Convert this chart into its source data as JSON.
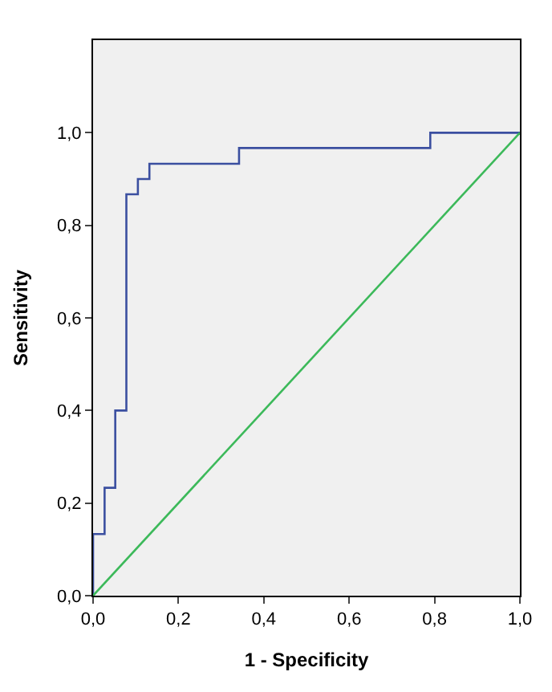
{
  "chart_data": {
    "type": "step",
    "xlabel": "1 - Specificity",
    "ylabel": "Sensitivity",
    "series": [
      {
        "color": "#3b4fa0",
        "x": [
          0,
          0,
          0.027,
          0.052,
          0.078,
          0.105,
          0.132,
          0.342,
          0.79,
          1
        ],
        "values": [
          0,
          0.133,
          0.233,
          0.4,
          0.867,
          0.9,
          0.933,
          0.967,
          1,
          1
        ]
      },
      {
        "type": "line",
        "color": "#3cb95a",
        "x": [
          0,
          1
        ],
        "values": [
          0,
          1
        ]
      }
    ],
    "xlim": [
      0,
      1
    ],
    "ylim": [
      0,
      1.2
    ],
    "xticks": [
      {
        "value": 0,
        "label": "0,0"
      },
      {
        "value": 0.2,
        "label": "0,2"
      },
      {
        "value": 0.4,
        "label": "0,4"
      },
      {
        "value": 0.6,
        "label": "0,6"
      },
      {
        "value": 0.8,
        "label": "0,8"
      },
      {
        "value": 1,
        "label": "1,0"
      }
    ],
    "yticks": [
      {
        "value": 0,
        "label": "0,0"
      },
      {
        "value": 0.2,
        "label": "0,2"
      },
      {
        "value": 0.4,
        "label": "0,4"
      },
      {
        "value": 0.6,
        "label": "0,6"
      },
      {
        "value": 0.8,
        "label": "0,8"
      },
      {
        "value": 1,
        "label": "1,0"
      }
    ],
    "grid": false
  }
}
